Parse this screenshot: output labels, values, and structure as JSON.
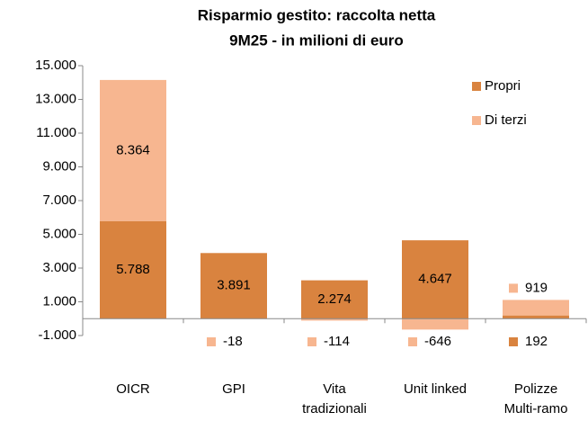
{
  "chart_data": {
    "type": "stacked_bar",
    "title": "Risparmio gestito: raccolta netta",
    "subtitle": "9M25  - in milioni di euro",
    "categories": [
      "OICR",
      "GPI",
      "Vita\ntradizionali",
      "Unit linked",
      "Polizze\nMulti-ramo"
    ],
    "series": [
      {
        "name": "Propri",
        "color": "#d9833f",
        "values": [
          5788,
          3891,
          2274,
          4647,
          192
        ],
        "value_labels": [
          "5.788",
          "3.891",
          "2.274",
          "4.647",
          "192"
        ]
      },
      {
        "name": "Di terzi",
        "color": "#f7b690",
        "values": [
          8364,
          -18,
          -114,
          -646,
          919
        ],
        "value_labels": [
          "8.364",
          "-18",
          "-114",
          "-646",
          "919"
        ]
      }
    ],
    "ylim": [
      -1000,
      15000
    ],
    "yticks": [
      {
        "value": -1000,
        "label": "-1.000"
      },
      {
        "value": 1000,
        "label": "1.000"
      },
      {
        "value": 3000,
        "label": "3.000"
      },
      {
        "value": 5000,
        "label": "5.000"
      },
      {
        "value": 7000,
        "label": "7.000"
      },
      {
        "value": 9000,
        "label": "9.000"
      },
      {
        "value": 11000,
        "label": "11.000"
      },
      {
        "value": 13000,
        "label": "13.000"
      },
      {
        "value": 15000,
        "label": "15.000"
      }
    ],
    "legend": "right",
    "grid": false
  }
}
